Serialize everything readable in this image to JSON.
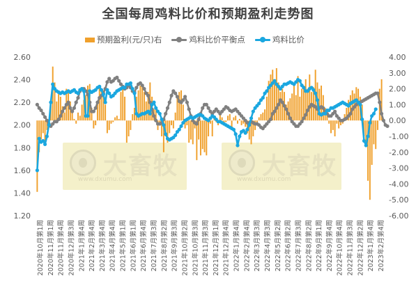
{
  "title": "全国每周鸡料比价和预期盈利走势图",
  "legend": {
    "profit": "预期盈利(元/只)右",
    "avg": "鸡料比价平衡点",
    "ratio": "鸡料比价"
  },
  "watermark": {
    "brand": "大畜牧",
    "url": "www.dxumu.com"
  },
  "colors": {
    "profit": "#f0a02c",
    "avg": "#808080",
    "ratio": "#1aa7e0"
  },
  "chart_data": {
    "type": "bar+line",
    "title": "全国每周鸡料比价和预期盈利走势图",
    "left_axis": {
      "min": 1.2,
      "max": 2.6,
      "step": 0.2,
      "ticks": [
        "1.20",
        "1.40",
        "1.60",
        "1.80",
        "2.00",
        "2.20",
        "2.40",
        "2.60"
      ]
    },
    "right_axis": {
      "min": -6,
      "max": 4,
      "step": 1,
      "ticks": [
        "-6.00",
        "-5.00",
        "-4.00",
        "-3.00",
        "-2.00",
        "-1.00",
        "0.00",
        "1.00",
        "2.00",
        "3.00",
        "4.00"
      ]
    },
    "x_tick_labels": [
      "2020年10月第1周",
      "2020年11月第1周",
      "2020年11月第4周",
      "2020年12月第3周",
      "2021年1月第4周",
      "2021年2月第4周",
      "2021年3月第4周",
      "2021年4月第4周",
      "2021年5月第1周",
      "2021年6月第1周",
      "2021年6月第4周",
      "2021年7月第3周",
      "2021年8月第2周",
      "2021年9月第3周",
      "2021年10月第2周",
      "2021年10月第3周",
      "2021年11月第3周",
      "2021年12月第1周",
      "2021年12月第4周",
      "2022年1月第4周",
      "2022年2月第4周",
      "2022年3月第3周",
      "2022年4月第3周",
      "2022年5月第2周",
      "2022年6月第2周",
      "2022年7月第3周",
      "2022年8月第2周",
      "2022年9月第1周",
      "2022年9月第4周",
      "2022年10月第4周",
      "2022年11月第3周",
      "2022年12月第2周",
      "2023年1月第4周",
      "2023年2月第4周"
    ],
    "series": [
      {
        "name": "预期盈利(元/只)右",
        "type": "bar",
        "axis": "right",
        "values": [
          -4.5,
          -2.0,
          -1.2,
          -0.8,
          -1.5,
          -0.6,
          -0.4,
          1.0,
          3.4,
          2.4,
          1.2,
          1.8,
          1.5,
          0.9,
          0.5,
          2.0,
          1.8,
          1.2,
          0.6,
          0.1,
          -0.2,
          0.5,
          0.3,
          1.0,
          1.3,
          1.6,
          2.2,
          2.3,
          0.8,
          -0.5,
          -0.3,
          1.2,
          2.2,
          2.0,
          1.9,
          1.0,
          -0.8,
          -0.6,
          -0.2,
          -0.1,
          0.2,
          0.3,
          0.1,
          1.8,
          2.0,
          1.5,
          -1.4,
          -1.0,
          -0.6,
          0.4,
          0.8,
          1.5,
          1.9,
          2.2,
          2.3,
          1.8,
          1.2,
          1.8,
          2.4,
          1.5,
          0.7,
          0.8,
          -0.6,
          -0.3,
          -1.0,
          -2.0,
          -1.0,
          -1.4,
          -0.8,
          -0.3,
          -0.5,
          0.5,
          1.5,
          1.8,
          1.9,
          1.0,
          -0.5,
          -0.3,
          -1.4,
          -1.2,
          -1.5,
          -0.5,
          -2.5,
          -1.2,
          -2.2,
          -1.8,
          -2.0,
          -2.2,
          -1.0,
          -0.2,
          -1.0,
          0.3,
          -0.1,
          -0.3,
          0.4,
          0.2,
          -0.2,
          -0.1,
          0.3,
          0.4,
          -0.5,
          0.2,
          0.3,
          -0.2,
          0.1,
          -0.3,
          -0.2,
          -0.4,
          -0.8,
          -1.2,
          -1.5,
          -1.0,
          -0.6,
          -0.2,
          0.2,
          0.4,
          0.5,
          0.7,
          1.5,
          2.5,
          2.9,
          3.2,
          2.6,
          3.3,
          2.4,
          1.8,
          2.0,
          1.8,
          1.0,
          1.2,
          1.4,
          1.7,
          2.3,
          1.6,
          2.8,
          1.5,
          2.0,
          2.2,
          2.6,
          2.0,
          2.9,
          1.8,
          2.1,
          3.2,
          2.4,
          2.0,
          2.2,
          1.6,
          0.8,
          0.5,
          -0.2,
          -0.8,
          -0.6,
          -1.0,
          -0.2,
          -0.5,
          -0.3,
          -0.2,
          0.4,
          0.8,
          1.3,
          1.6,
          1.9,
          1.7,
          2.1,
          2.0,
          1.5,
          1.0,
          -1.0,
          -1.5,
          -3.8,
          -5.0,
          -2.8,
          -1.5,
          -1.8,
          -0.6,
          2.0,
          2.6
        ]
      },
      {
        "name": "鸡料比价平衡点",
        "type": "line",
        "axis": "left",
        "values": [
          2.18,
          2.15,
          2.13,
          2.1,
          2.07,
          2.04,
          2.01,
          1.99,
          2.01,
          2.03,
          2.03,
          2.05,
          2.08,
          2.12,
          2.15,
          2.18,
          2.2,
          2.15,
          2.12,
          2.15,
          2.2,
          2.24,
          2.3,
          2.32,
          2.32,
          2.3,
          2.27,
          2.2,
          2.12,
          2.12,
          2.15,
          2.2,
          2.24,
          2.26,
          2.28,
          2.32,
          2.38,
          2.41,
          2.38,
          2.39,
          2.41,
          2.42,
          2.39,
          2.36,
          2.34,
          2.32,
          2.33,
          2.35,
          2.33,
          2.3,
          2.29,
          2.33,
          2.36,
          2.37,
          2.35,
          2.32,
          2.28,
          2.26,
          2.2,
          2.14,
          2.08,
          2.04,
          2.01,
          2.01,
          2.02,
          2.05,
          2.1,
          2.15,
          2.2,
          2.26,
          2.3,
          2.28,
          2.25,
          2.21,
          2.2,
          2.22,
          2.25,
          2.2,
          2.14,
          2.08,
          2.04,
          2.02,
          2.01,
          2.05,
          2.1,
          2.15,
          2.18,
          2.18,
          2.15,
          2.12,
          2.1,
          2.12,
          2.14,
          2.12,
          2.1,
          2.12,
          2.14,
          2.16,
          2.15,
          2.13,
          2.12,
          2.13,
          2.14,
          2.12,
          2.1,
          2.08,
          2.06,
          2.04,
          2.02,
          2.02,
          2.03,
          2.02,
          2.01,
          2.01,
          2.0,
          1.98,
          1.97,
          1.99,
          2.01,
          2.03,
          2.05,
          2.1,
          2.12,
          2.15,
          2.18,
          2.22,
          2.2,
          2.17,
          2.14,
          2.1,
          2.06,
          2.03,
          2.01,
          1.99,
          1.99,
          2.01,
          2.03,
          2.06,
          2.09,
          2.13,
          2.16,
          2.18,
          2.17,
          2.16,
          2.14,
          2.15,
          2.16,
          2.15,
          2.12,
          2.1,
          2.08,
          2.08,
          2.1,
          2.12,
          2.08,
          2.06,
          2.04,
          2.04,
          2.05,
          2.06,
          2.08,
          2.1,
          2.14,
          2.16,
          2.18,
          2.2,
          2.2,
          2.21,
          2.22,
          2.23,
          2.24,
          2.25,
          2.26,
          2.27,
          2.28,
          2.28,
          2.2,
          2.1,
          2.04,
          2.0,
          1.99
        ]
      },
      {
        "name": "鸡料比价",
        "type": "line",
        "axis": "left",
        "values": [
          1.6,
          1.88,
          1.85,
          1.86,
          1.83,
          1.9,
          2.0,
          2.2,
          2.36,
          2.32,
          2.3,
          2.29,
          2.28,
          2.29,
          2.28,
          2.29,
          2.3,
          2.29,
          2.3,
          2.31,
          2.29,
          2.28,
          2.31,
          2.32,
          2.3,
          2.08,
          2.08,
          2.3,
          2.29,
          2.3,
          2.31,
          2.33,
          2.34,
          2.31,
          2.27,
          2.2,
          2.31,
          2.28,
          2.25,
          2.26,
          2.28,
          2.3,
          2.31,
          2.32,
          2.33,
          2.33,
          2.36,
          2.36,
          2.37,
          2.32,
          2.28,
          2.1,
          2.08,
          2.09,
          2.1,
          2.1,
          2.11,
          2.12,
          2.1,
          2.18,
          2.2,
          2.15,
          2.12,
          2.1,
          2.05,
          2.0,
          1.92,
          1.88,
          1.87,
          1.88,
          1.89,
          1.91,
          1.94,
          1.96,
          1.99,
          2.02,
          2.04,
          2.05,
          2.06,
          2.07,
          2.06,
          2.07,
          2.08,
          2.09,
          2.09,
          2.08,
          2.06,
          2.05,
          2.04,
          2.06,
          2.08,
          2.07,
          2.05,
          2.03,
          2.03,
          2.02,
          2.01,
          2.0,
          1.99,
          1.98,
          1.97,
          1.96,
          1.92,
          1.82,
          1.9,
          1.94,
          1.95,
          1.93,
          1.96,
          2.0,
          2.06,
          2.12,
          2.15,
          2.17,
          2.19,
          2.22,
          2.24,
          2.28,
          2.3,
          2.33,
          2.35,
          2.37,
          2.39,
          2.36,
          2.34,
          2.32,
          2.34,
          2.36,
          2.36,
          2.37,
          2.38,
          2.37,
          2.36,
          2.38,
          2.4,
          2.39,
          2.35,
          2.33,
          2.3,
          2.3,
          2.32,
          2.33,
          2.31,
          2.28,
          2.22,
          2.1,
          2.09,
          2.1,
          2.1,
          2.13,
          2.13,
          2.15,
          2.15,
          2.16,
          2.17,
          2.18,
          2.19,
          2.2,
          2.19,
          2.18,
          2.17,
          2.19,
          2.2,
          2.21,
          2.22,
          2.2,
          2.18,
          2.05,
          1.86,
          1.82,
          1.9,
          2.02,
          2.08,
          2.1,
          2.14
        ]
      }
    ]
  }
}
